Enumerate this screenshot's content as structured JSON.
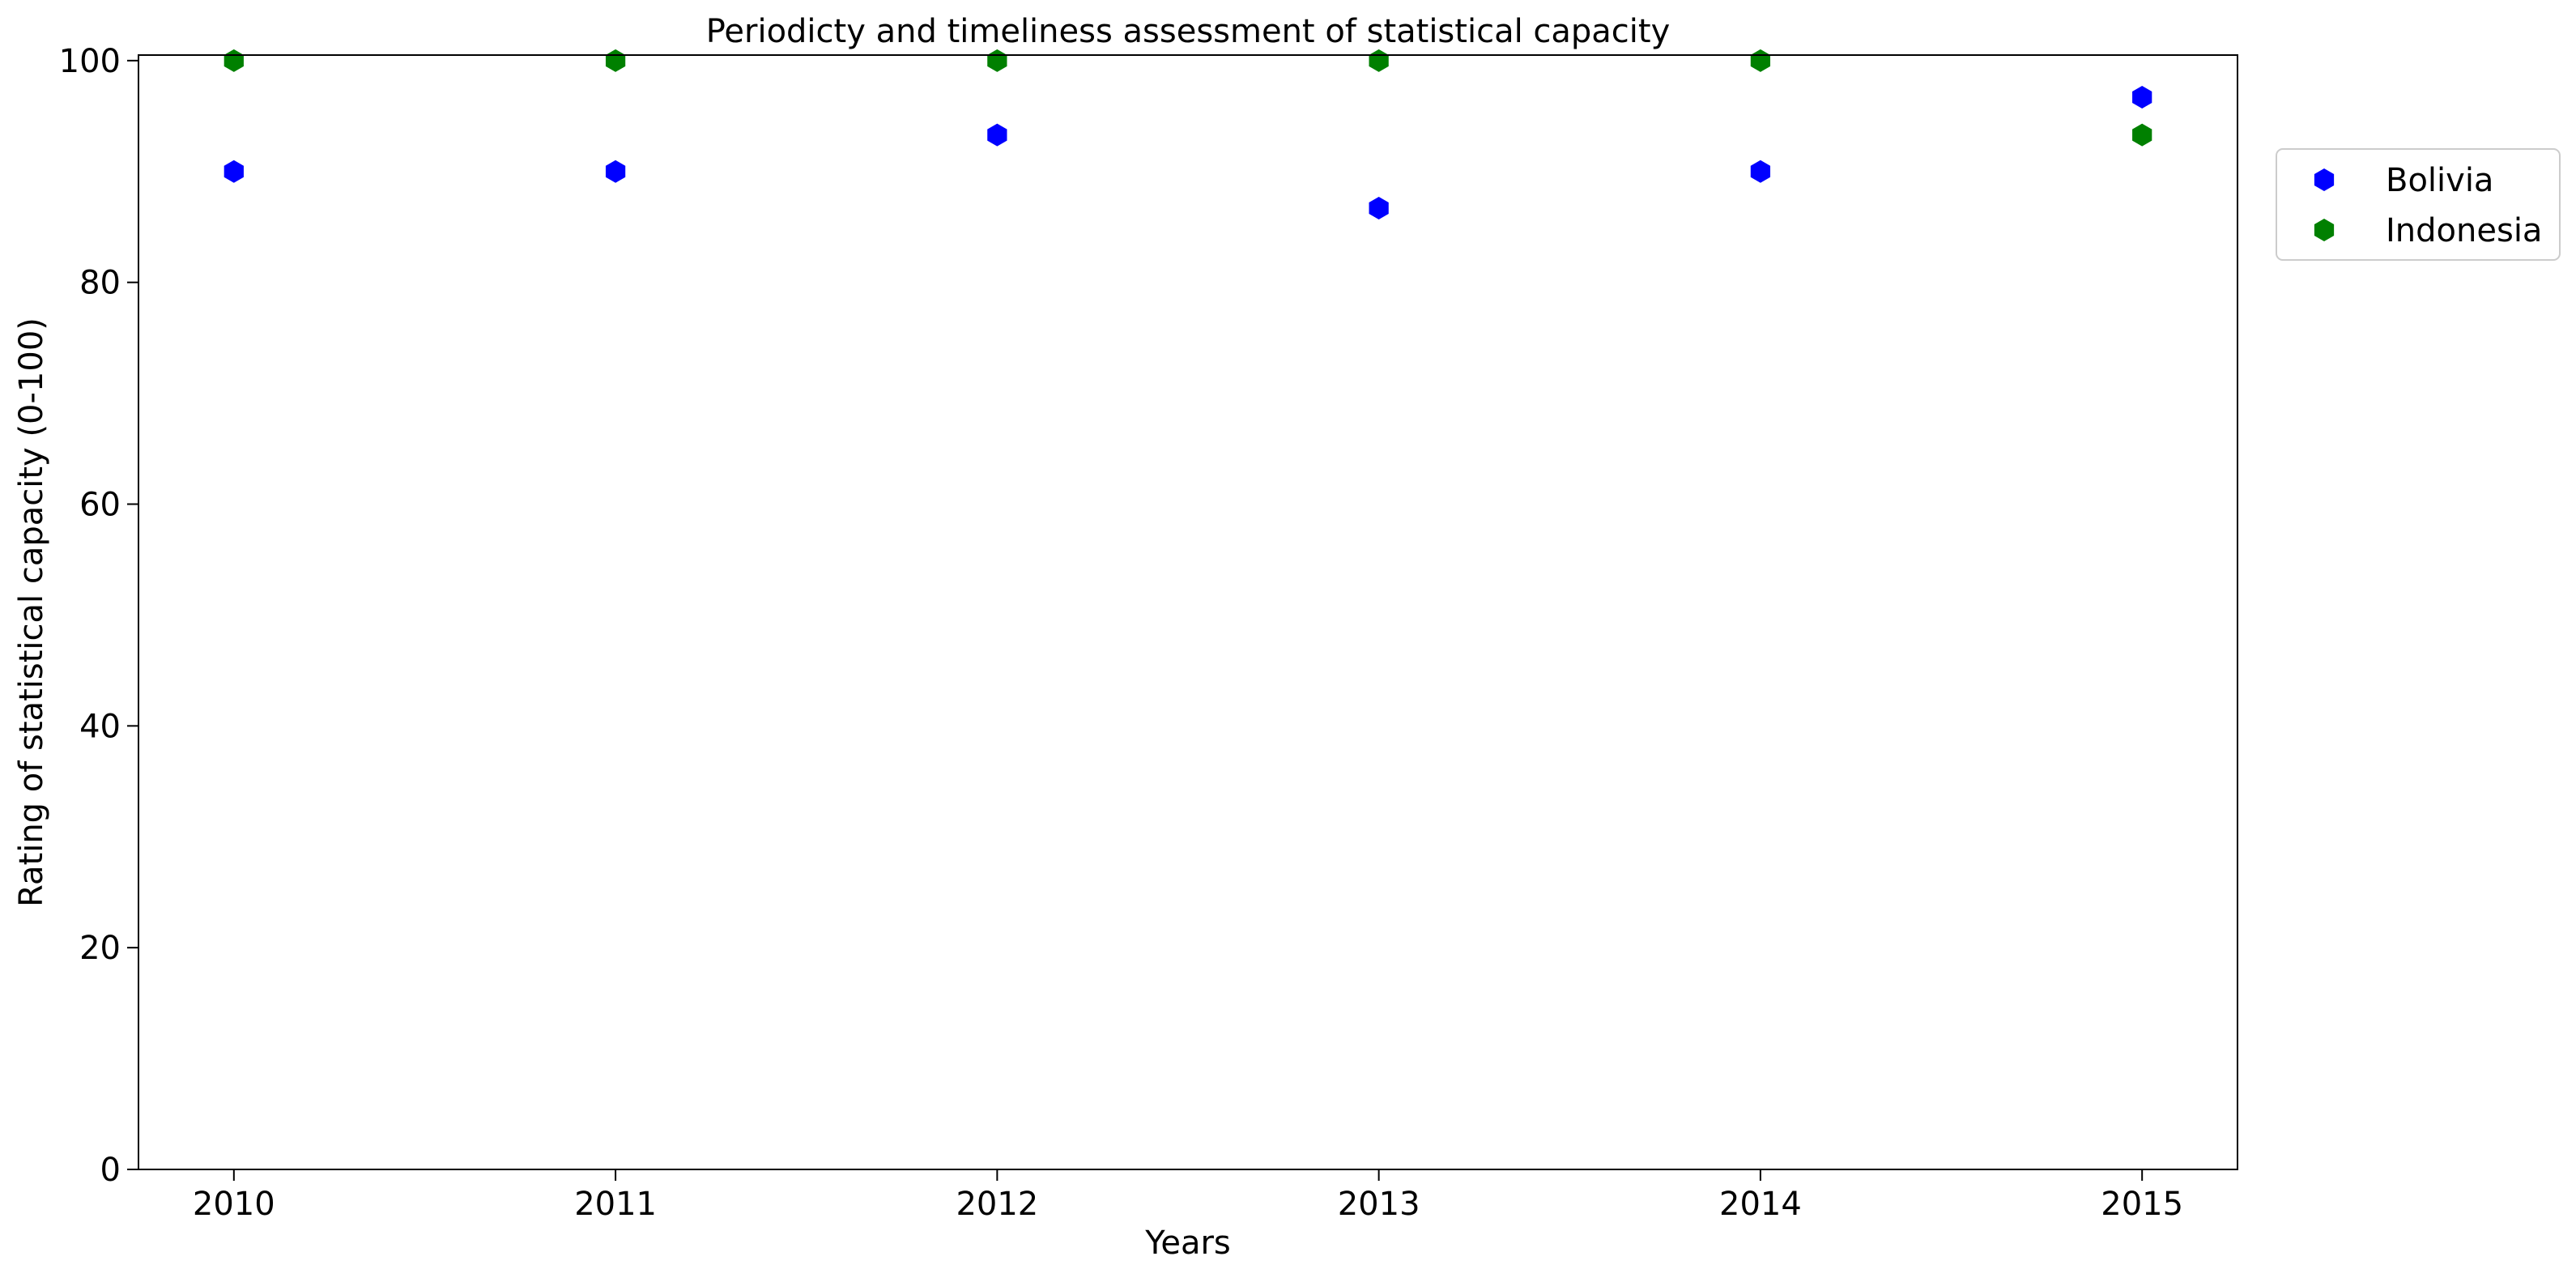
{
  "chart_data": {
    "type": "scatter",
    "title": "Periodicty and timeliness assessment of statistical capacity",
    "xlabel": "Years",
    "ylabel": "Rating of statistical capacity (0-100)",
    "x": [
      2010,
      2011,
      2012,
      2013,
      2014,
      2015
    ],
    "xticks": [
      "2010",
      "2011",
      "2012",
      "2013",
      "2014",
      "2015"
    ],
    "xlim": [
      2009.75,
      2015.25
    ],
    "ylim": [
      0,
      100.5
    ],
    "yticks": [
      "0",
      "20",
      "40",
      "60",
      "80",
      "100"
    ],
    "grid": false,
    "legend_position": "outside right, top",
    "marker": "hexagon",
    "series": [
      {
        "name": "Bolivia",
        "color": "#0000ff",
        "values": [
          90,
          90,
          93.3,
          86.7,
          90,
          96.7
        ]
      },
      {
        "name": "Indonesia",
        "color": "#008000",
        "values": [
          100,
          100,
          100,
          100,
          100,
          93.3
        ]
      }
    ]
  }
}
